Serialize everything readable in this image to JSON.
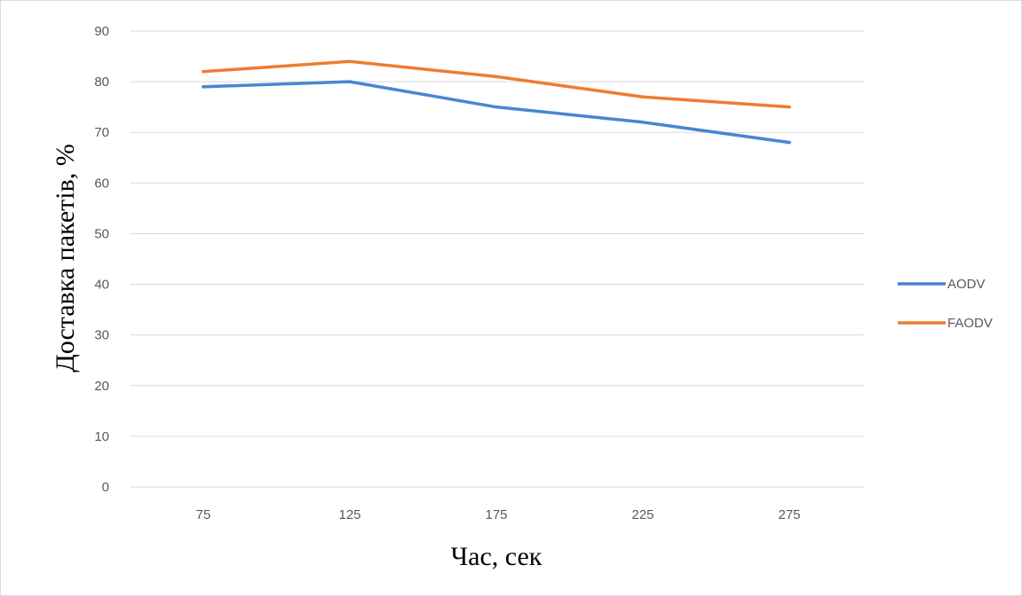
{
  "chart_data": {
    "type": "line",
    "title": "",
    "xlabel": "Час,  сек",
    "ylabel": "Доставка пакетів,  %",
    "categories": [
      "75",
      "125",
      "175",
      "225",
      "275"
    ],
    "ylim": [
      0,
      90
    ],
    "yticks": [
      "0",
      "10",
      "20",
      "30",
      "40",
      "50",
      "60",
      "70",
      "80",
      "90"
    ],
    "grid": true,
    "legend_position": "right",
    "series": [
      {
        "name": "AODV",
        "color": "#4a86d0",
        "values": [
          79,
          80,
          75,
          72,
          68
        ]
      },
      {
        "name": "FAODV",
        "color": "#ed7d31",
        "values": [
          82,
          84,
          81,
          77,
          75
        ]
      }
    ]
  }
}
